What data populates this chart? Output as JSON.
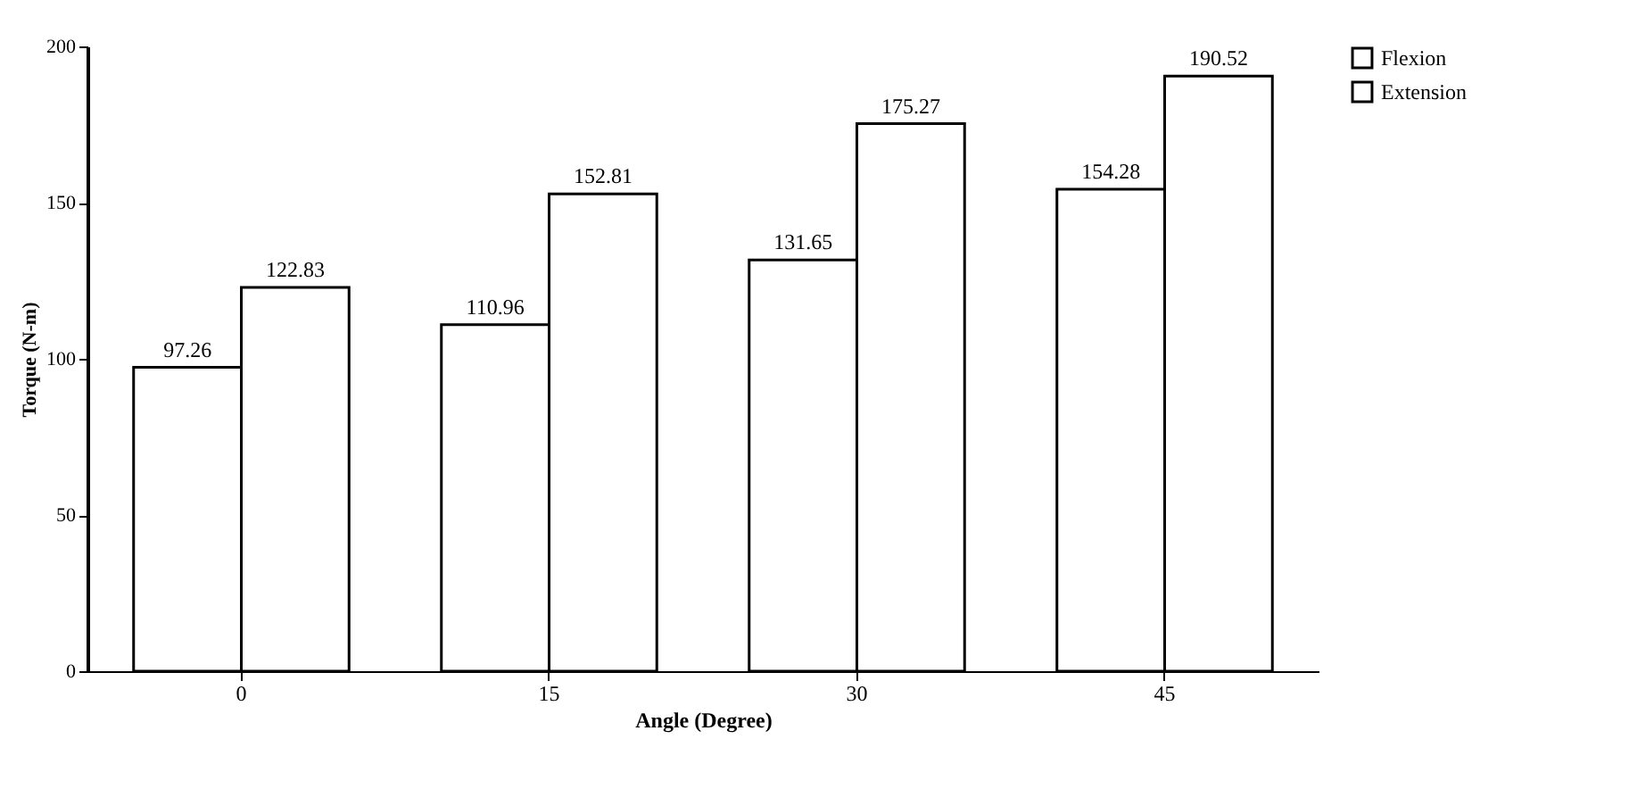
{
  "chart_data": {
    "type": "bar",
    "xlabel": "Angle (Degree)",
    "ylabel": "Torque (N-m)",
    "categories": [
      "0",
      "15",
      "30",
      "45"
    ],
    "series": [
      {
        "name": "Flexion",
        "color": "#ffffff",
        "values": [
          97.26,
          110.96,
          131.65,
          154.28
        ]
      },
      {
        "name": "Extension",
        "color": "#ffffff",
        "values": [
          122.83,
          152.81,
          175.27,
          190.52
        ]
      }
    ],
    "ylim": [
      0,
      200
    ],
    "yticks": [
      0,
      50,
      100,
      150,
      200
    ],
    "grid": false,
    "legend": "right",
    "data_labels": true
  }
}
